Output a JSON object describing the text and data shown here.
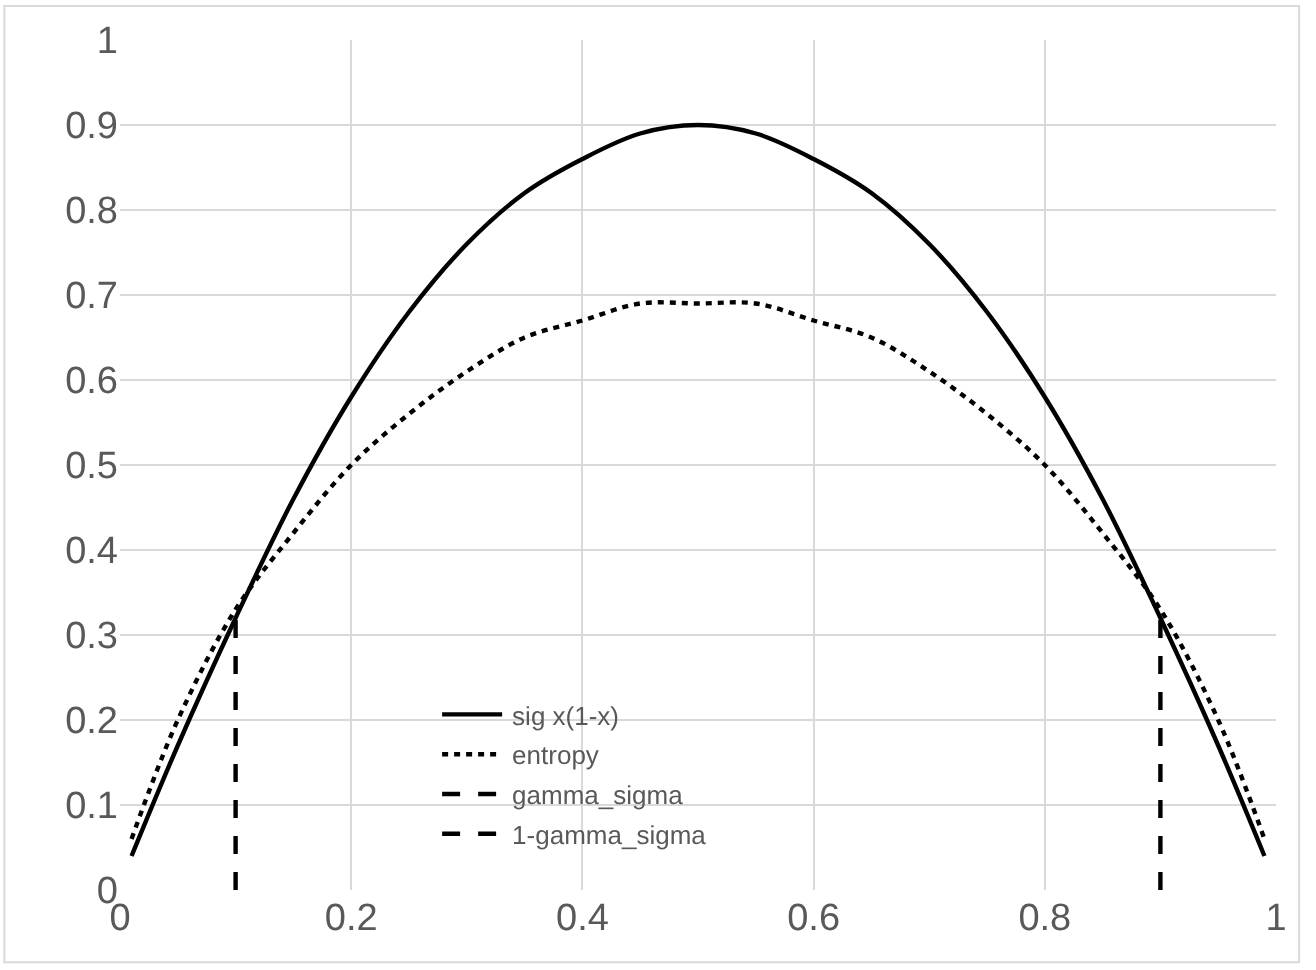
{
  "chart_data": {
    "type": "line",
    "xlim": [
      0,
      1
    ],
    "xticks": [
      0,
      0.2,
      0.4,
      0.6,
      0.8,
      1
    ],
    "ylim": [
      0,
      1
    ],
    "yticks": [
      0,
      0.1,
      0.2,
      0.3,
      0.4,
      0.5,
      0.6,
      0.7,
      0.8,
      0.9,
      1
    ],
    "grid": true,
    "legend": "bottom",
    "marker": "none",
    "series": [
      {
        "name": "sig x(1-x)",
        "color": "#000000",
        "line_style": "solid",
        "x": [
          0.01,
          0.05,
          0.1,
          0.15,
          0.2,
          0.25,
          0.3,
          0.35,
          0.4,
          0.45,
          0.5,
          0.55,
          0.6,
          0.65,
          0.7,
          0.75,
          0.8,
          0.85,
          0.9,
          0.95,
          0.99
        ],
        "values": [
          0.04,
          0.17,
          0.32,
          0.46,
          0.58,
          0.68,
          0.76,
          0.82,
          0.86,
          0.89,
          0.9,
          0.89,
          0.86,
          0.82,
          0.76,
          0.68,
          0.58,
          0.46,
          0.32,
          0.17,
          0.04
        ]
      },
      {
        "name": "entropy",
        "color": "#000000",
        "line_style": "dotted",
        "x": [
          0.01,
          0.05,
          0.1,
          0.15,
          0.2,
          0.25,
          0.3,
          0.35,
          0.4,
          0.45,
          0.5,
          0.55,
          0.6,
          0.65,
          0.7,
          0.75,
          0.8,
          0.85,
          0.9,
          0.95,
          0.99
        ],
        "values": [
          0.06,
          0.2,
          0.33,
          0.42,
          0.5,
          0.56,
          0.61,
          0.65,
          0.67,
          0.69,
          0.69,
          0.69,
          0.67,
          0.65,
          0.61,
          0.56,
          0.5,
          0.42,
          0.33,
          0.2,
          0.06
        ]
      },
      {
        "name": "gamma_sigma",
        "color": "#000000",
        "line_style": "dashed",
        "x": [
          0.1,
          0.1
        ],
        "values": [
          0,
          0.32
        ]
      },
      {
        "name": "1-gamma_sigma",
        "color": "#000000",
        "line_style": "dashed",
        "x": [
          0.9,
          0.9
        ],
        "values": [
          0,
          0.32
        ]
      }
    ]
  }
}
